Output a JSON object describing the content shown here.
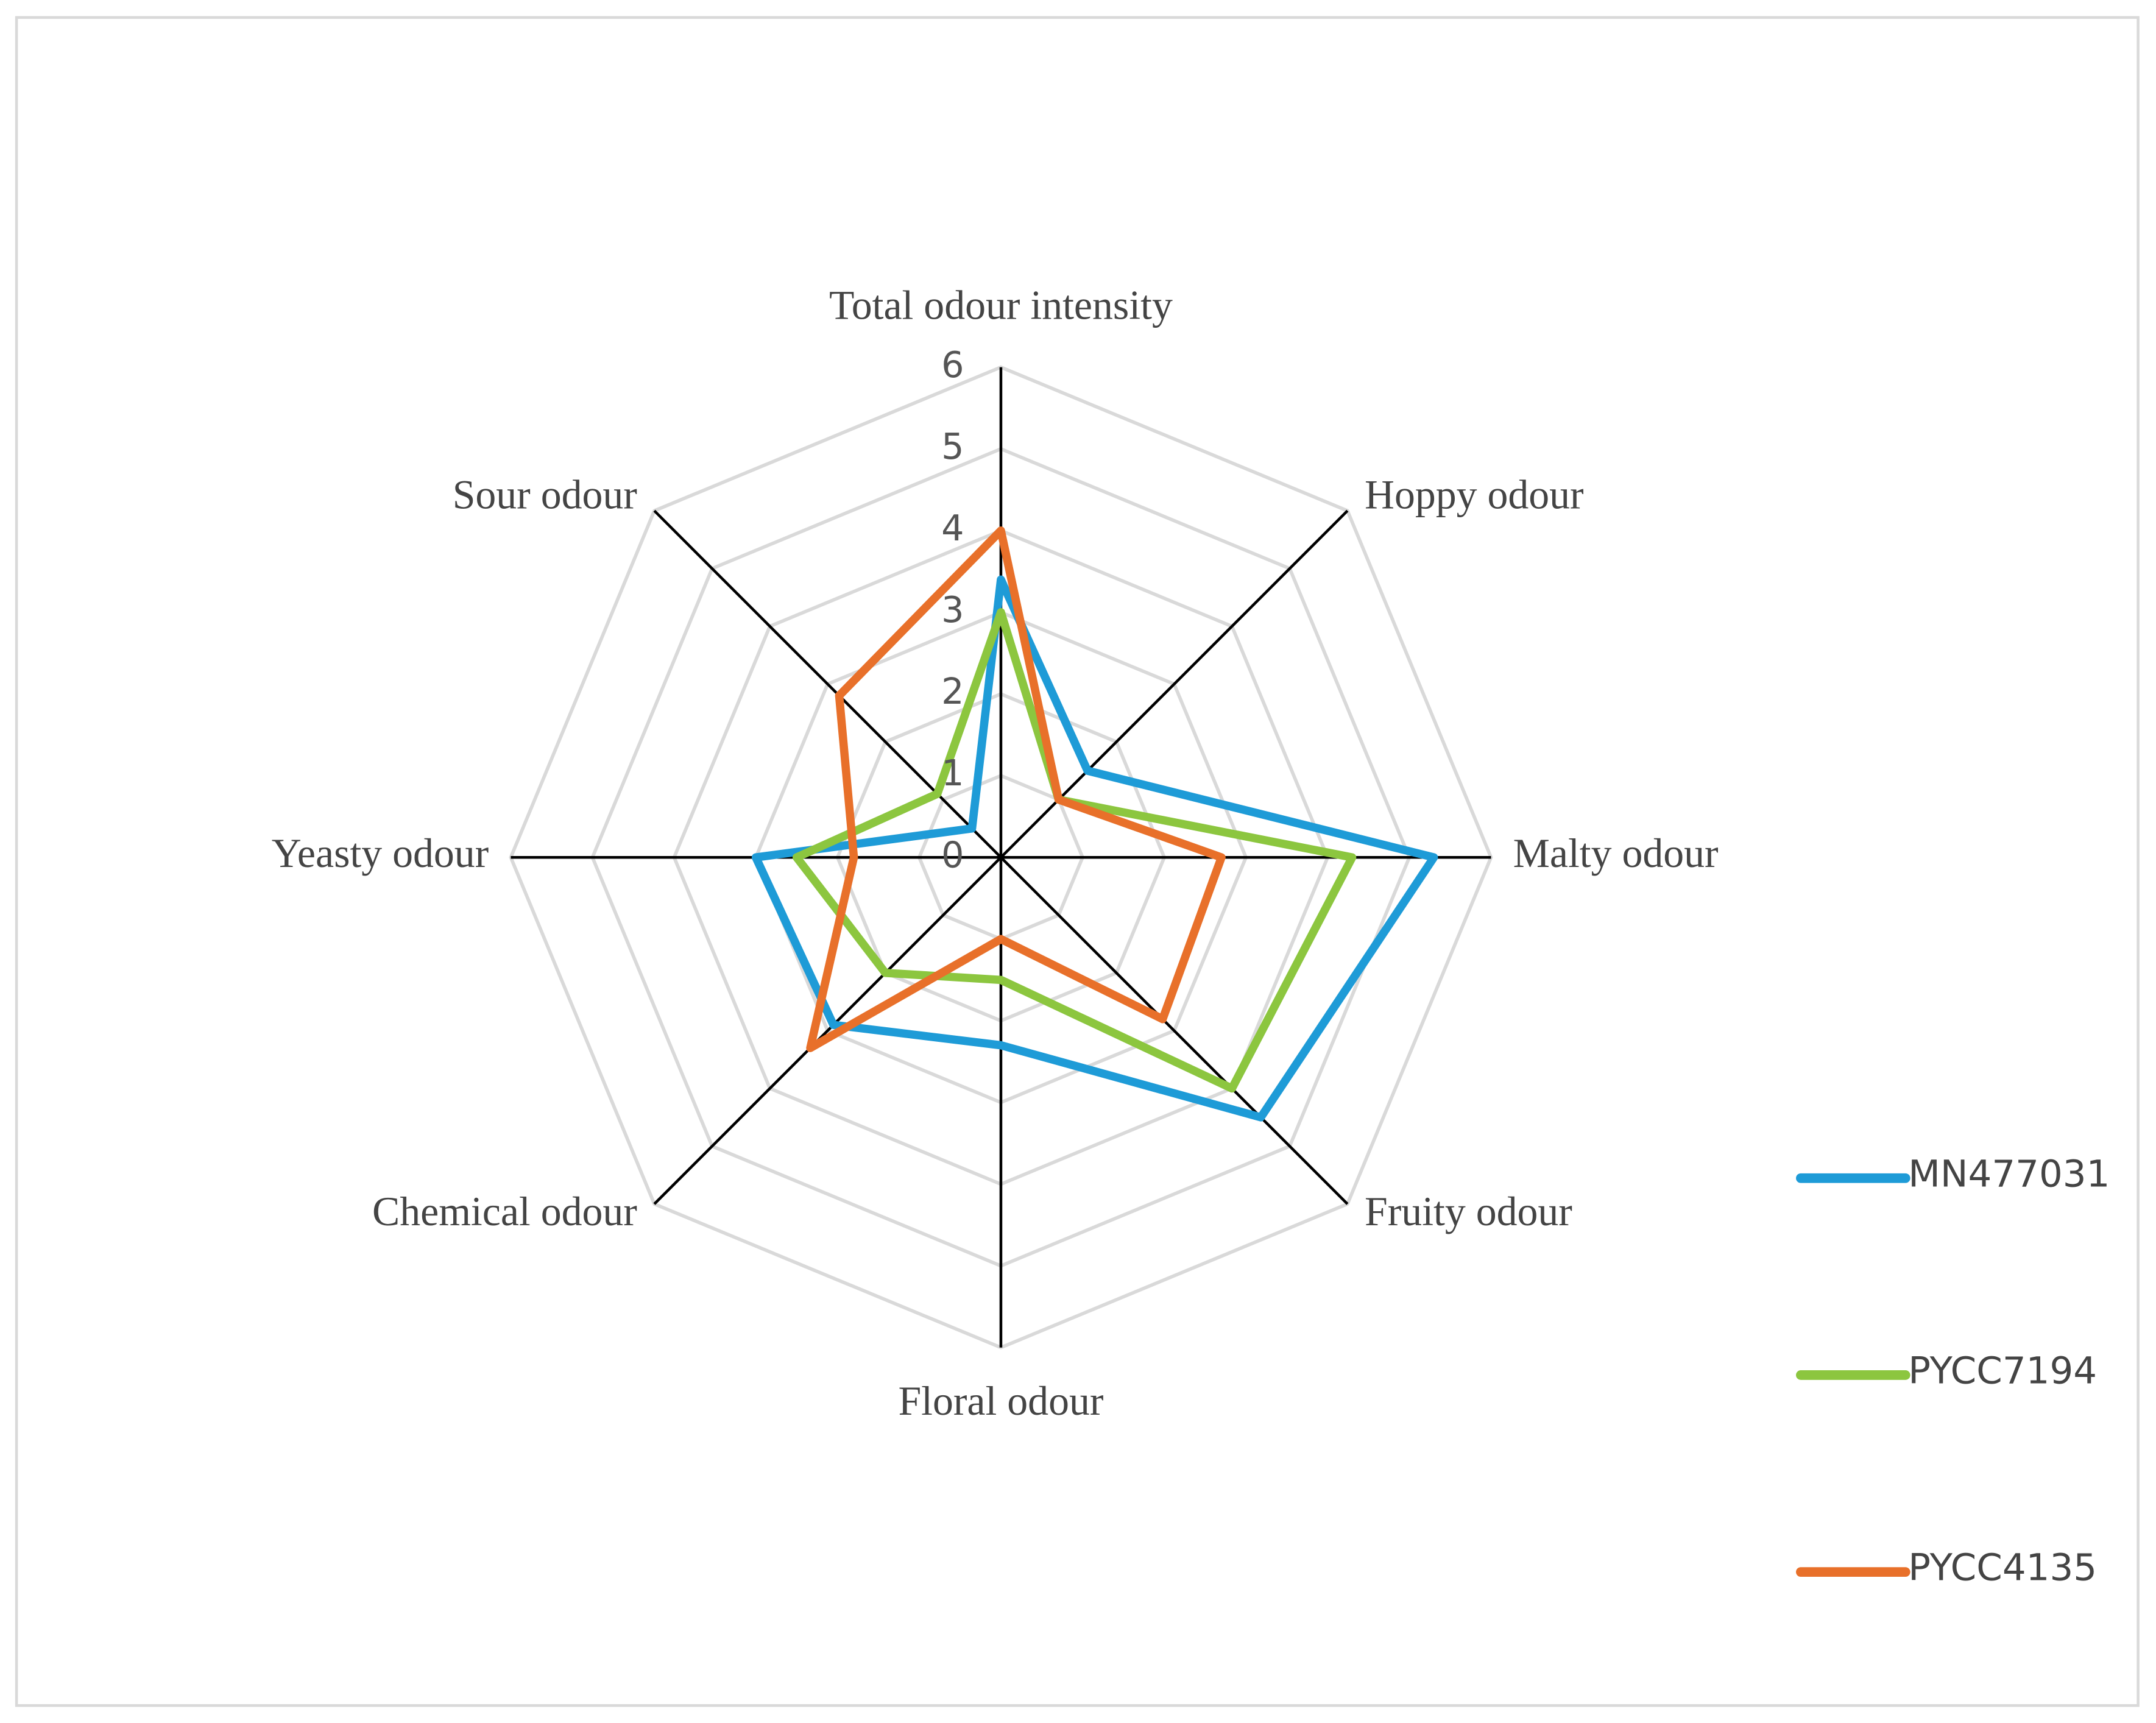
{
  "chart_data": {
    "type": "radar",
    "categories": [
      "Total odour intensity",
      "Hoppy odour",
      "Malty odour",
      "Fruity odour",
      "Floral odour",
      "Chemical odour",
      "Yeasty odour",
      "Sour odour"
    ],
    "series": [
      {
        "name": "MN477031",
        "color": "#1e9bd7",
        "values": [
          3.4,
          1.5,
          5.3,
          4.5,
          2.3,
          2.9,
          3.0,
          0.5
        ]
      },
      {
        "name": "PYCC7194",
        "color": "#8cc63f",
        "values": [
          3.0,
          1.0,
          4.3,
          4.0,
          1.5,
          2.0,
          2.5,
          1.1
        ]
      },
      {
        "name": "PYCC4135",
        "color": "#e8702a",
        "values": [
          4.0,
          1.0,
          2.7,
          2.8,
          1.0,
          3.3,
          1.8,
          2.8
        ]
      }
    ],
    "rlim": [
      0,
      6
    ],
    "rticks": [
      0,
      1,
      2,
      3,
      4,
      5,
      6
    ],
    "grid": true
  }
}
